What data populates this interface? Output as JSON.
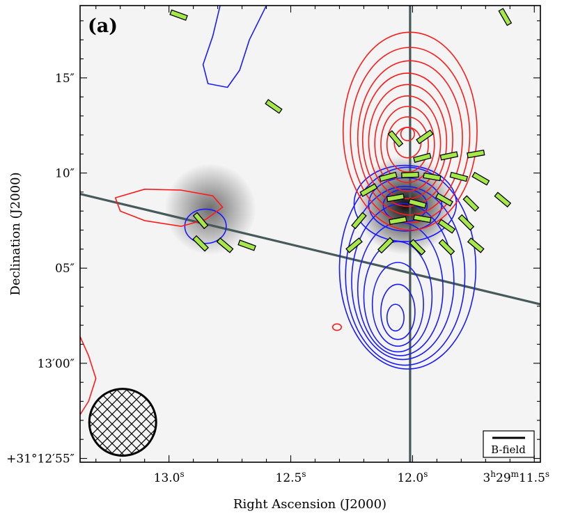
{
  "chart_data": {
    "type": "contour_map",
    "panel_label": "(a)",
    "xlabel": "Right Ascension (J2000)",
    "ylabel": "Declination (J2000)",
    "x_ticks": [
      {
        "value": 13.0,
        "label": "13.0",
        "sup": "s"
      },
      {
        "value": 12.5,
        "label": "12.5",
        "sup": "s"
      },
      {
        "value": 12.0,
        "label": "12.0",
        "sup": "s"
      },
      {
        "value": 11.5,
        "label": "3h29m11.5s"
      }
    ],
    "y_ticks": [
      {
        "value": 15,
        "label": "15″"
      },
      {
        "value": 10,
        "label": "10″"
      },
      {
        "value": 5,
        "label": "05″"
      },
      {
        "value": 0,
        "label": "13′00″"
      },
      {
        "value": -5,
        "label": "+31°12′55″"
      }
    ],
    "x_range_sec": [
      13.365,
      11.475
    ],
    "y_range_arcsec": [
      -5.2,
      18.8
    ],
    "legend_label": "B-field",
    "beam": {
      "ra": 13.19,
      "dec": -3.1,
      "major_arcsec": 2.6,
      "minor_arcsec": 2.6,
      "hatched": true
    },
    "outflow_axes": [
      {
        "name": "vertical-outflow-axis",
        "ra1": 12.01,
        "dec1": 18.8,
        "ra2": 12.01,
        "dec2": -5.2
      },
      {
        "name": "diagonal-outflow-axis",
        "ra1": 13.365,
        "dec1": 8.9,
        "ra2": 11.475,
        "dec2": 3.1
      }
    ],
    "grayscale_sources": [
      {
        "name": "dust-peak-east",
        "ra": 12.83,
        "dec": 8.1,
        "r_arcsec": 2.4,
        "peak": 0.55
      },
      {
        "name": "dust-peak-west",
        "ra": 12.03,
        "dec": 8.3,
        "r_arcsec": 2.6,
        "peak": 0.95
      }
    ],
    "redshifted_contours": [
      {
        "ra": 12.01,
        "dec": 12.2,
        "rx": 0.275,
        "ry": 5.2
      },
      {
        "ra": 12.01,
        "dec": 12.0,
        "rx": 0.245,
        "ry": 4.6
      },
      {
        "ra": 12.01,
        "dec": 11.85,
        "rx": 0.215,
        "ry": 4.05
      },
      {
        "ra": 12.02,
        "dec": 11.75,
        "rx": 0.185,
        "ry": 3.5
      },
      {
        "ra": 12.02,
        "dec": 11.65,
        "rx": 0.16,
        "ry": 3.0
      },
      {
        "ra": 12.02,
        "dec": 11.55,
        "rx": 0.135,
        "ry": 2.5
      },
      {
        "ra": 12.02,
        "dec": 11.5,
        "rx": 0.11,
        "ry": 2.0
      },
      {
        "ra": 12.02,
        "dec": 11.5,
        "rx": 0.085,
        "ry": 1.45
      },
      {
        "ra": 12.02,
        "dec": 11.6,
        "rx": 0.055,
        "ry": 0.8
      },
      {
        "ra": 12.02,
        "dec": 12.05,
        "rx": 0.028,
        "ry": 0.35
      }
    ],
    "blueshifted_contours": [
      {
        "ra": 12.02,
        "dec": 5.0,
        "rx": 0.28,
        "ry": 5.3
      },
      {
        "ra": 12.03,
        "dec": 4.6,
        "rx": 0.245,
        "ry": 4.7
      },
      {
        "ra": 12.04,
        "dec": 4.3,
        "rx": 0.21,
        "ry": 4.1
      },
      {
        "ra": 12.05,
        "dec": 3.9,
        "rx": 0.175,
        "ry": 3.5
      },
      {
        "ra": 12.06,
        "dec": 3.5,
        "rx": 0.14,
        "ry": 2.9
      },
      {
        "ra": 12.06,
        "dec": 3.1,
        "rx": 0.105,
        "ry": 2.2
      },
      {
        "ra": 12.06,
        "dec": 2.7,
        "rx": 0.07,
        "ry": 1.45
      },
      {
        "ra": 12.07,
        "dec": 2.4,
        "rx": 0.035,
        "ry": 0.7
      }
    ],
    "blueshifted_core_contours": [
      {
        "ra": 12.03,
        "dec": 8.4,
        "rx": 0.21,
        "ry": 2.0
      },
      {
        "ra": 12.03,
        "dec": 8.35,
        "rx": 0.15,
        "ry": 1.4
      },
      {
        "ra": 12.03,
        "dec": 8.3,
        "rx": 0.09,
        "ry": 0.85
      }
    ],
    "blue_east_loop": {
      "ra": 12.85,
      "dec": 7.2,
      "rx": 0.085,
      "ry": 0.9
    },
    "blue_north_lobe": [
      [
        12.79,
        18.8
      ],
      [
        12.82,
        17.2
      ],
      [
        12.86,
        15.7
      ],
      [
        12.84,
        14.7
      ],
      [
        12.76,
        14.5
      ],
      [
        12.71,
        15.4
      ],
      [
        12.67,
        17.0
      ],
      [
        12.6,
        18.8
      ]
    ],
    "red_east_lobe": [
      [
        12.85,
        7.55
      ],
      [
        12.95,
        7.2
      ],
      [
        13.1,
        7.5
      ],
      [
        13.2,
        8.0
      ],
      [
        13.22,
        8.7
      ],
      [
        13.1,
        9.15
      ],
      [
        12.95,
        9.1
      ],
      [
        12.82,
        8.8
      ],
      [
        12.78,
        8.2
      ]
    ],
    "red_small_blob": {
      "ra": 12.31,
      "dec": 1.9,
      "rx": 0.018,
      "ry": 0.17
    },
    "red_corner_arc": [
      [
        13.365,
        1.4
      ],
      [
        13.33,
        0.4
      ],
      [
        13.3,
        -0.8
      ],
      [
        13.33,
        -2.0
      ],
      [
        13.365,
        -2.7
      ]
    ],
    "polarization_vectors": [
      {
        "ra": 12.96,
        "dec": 18.3,
        "pa": -70
      },
      {
        "ra": 11.62,
        "dec": 18.2,
        "pa": -30
      },
      {
        "ra": 12.57,
        "dec": 13.5,
        "pa": -55
      },
      {
        "ra": 12.07,
        "dec": 11.8,
        "pa": -40
      },
      {
        "ra": 11.95,
        "dec": 11.9,
        "pa": 55
      },
      {
        "ra": 11.96,
        "dec": 10.8,
        "pa": 75
      },
      {
        "ra": 11.85,
        "dec": 10.9,
        "pa": 78
      },
      {
        "ra": 11.74,
        "dec": 11.0,
        "pa": 80
      },
      {
        "ra": 12.1,
        "dec": 9.8,
        "pa": 75
      },
      {
        "ra": 12.01,
        "dec": 9.9,
        "pa": 88
      },
      {
        "ra": 11.92,
        "dec": 9.8,
        "pa": -80
      },
      {
        "ra": 11.81,
        "dec": 9.8,
        "pa": -75
      },
      {
        "ra": 11.72,
        "dec": 9.7,
        "pa": -60
      },
      {
        "ra": 12.18,
        "dec": 9.1,
        "pa": 60
      },
      {
        "ra": 12.07,
        "dec": 8.7,
        "pa": 80
      },
      {
        "ra": 11.98,
        "dec": 8.4,
        "pa": -75
      },
      {
        "ra": 11.87,
        "dec": 8.6,
        "pa": -60
      },
      {
        "ra": 11.76,
        "dec": 8.4,
        "pa": -45
      },
      {
        "ra": 11.63,
        "dec": 8.6,
        "pa": -50
      },
      {
        "ra": 12.22,
        "dec": 7.5,
        "pa": 40
      },
      {
        "ra": 12.06,
        "dec": 7.5,
        "pa": 80
      },
      {
        "ra": 11.96,
        "dec": 7.6,
        "pa": -80
      },
      {
        "ra": 11.86,
        "dec": 7.2,
        "pa": -55
      },
      {
        "ra": 11.78,
        "dec": 7.4,
        "pa": -45
      },
      {
        "ra": 12.24,
        "dec": 6.2,
        "pa": 50
      },
      {
        "ra": 12.11,
        "dec": 6.2,
        "pa": 45
      },
      {
        "ra": 11.98,
        "dec": 6.1,
        "pa": -45
      },
      {
        "ra": 11.86,
        "dec": 6.1,
        "pa": -45
      },
      {
        "ra": 11.74,
        "dec": 6.2,
        "pa": -50
      },
      {
        "ra": 12.87,
        "dec": 7.5,
        "pa": -40
      },
      {
        "ra": 12.87,
        "dec": 6.3,
        "pa": -45
      },
      {
        "ra": 12.77,
        "dec": 6.2,
        "pa": -50
      },
      {
        "ra": 12.68,
        "dec": 6.2,
        "pa": -70
      }
    ],
    "colors": {
      "red": "#ff1a1a",
      "blue": "#1a1aff",
      "vector_fill": "#a6e84a",
      "axis_line": "#465a5a",
      "frame": "#000000"
    }
  }
}
